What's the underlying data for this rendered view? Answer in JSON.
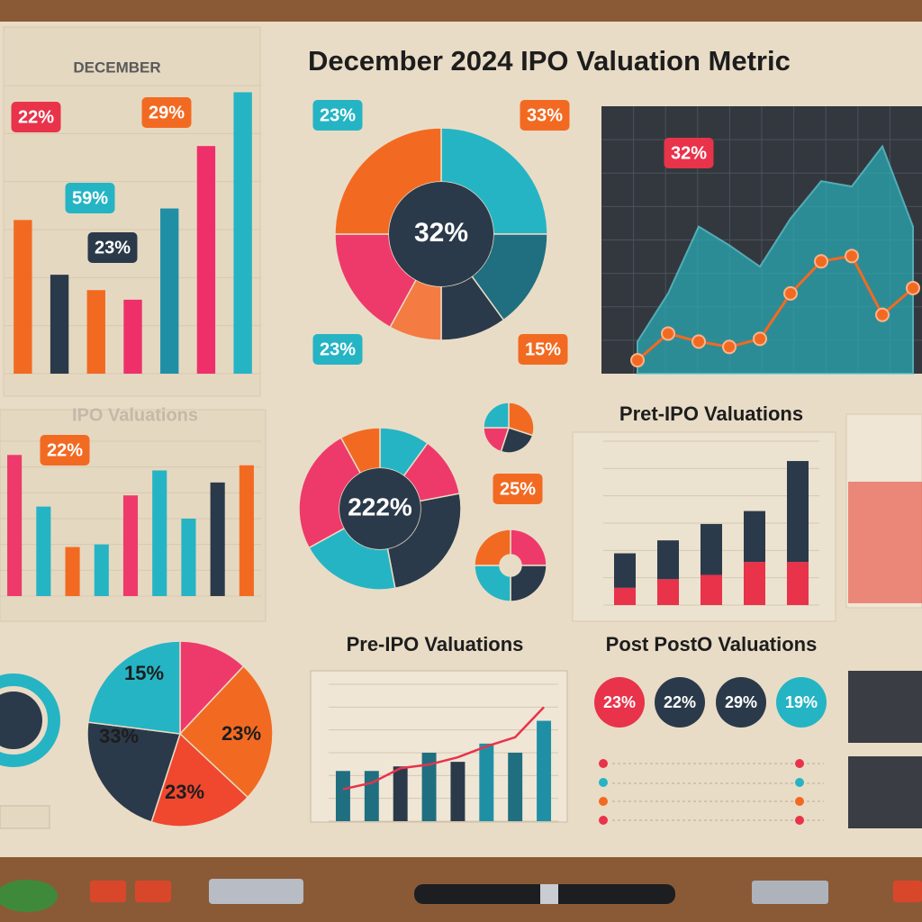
{
  "title": "December 2024 IPO Valuation Metric",
  "chart_data": [
    {
      "type": "bar",
      "title": "DECEMBER",
      "categories": [
        null,
        null,
        null,
        null,
        null,
        null,
        null
      ],
      "values": [
        160,
        103,
        87,
        77,
        172,
        237,
        293
      ],
      "colors": [
        "#f26a21",
        "#2b3a4a",
        "#f26a21",
        "#ee2f6a",
        "#1f8fa6",
        "#ee2f6a",
        "#25b4c4"
      ],
      "ylim": [
        0,
        300
      ],
      "annotations": [
        "22%",
        "29%",
        "59%",
        "23%"
      ]
    },
    {
      "type": "donut",
      "values": [
        25,
        15,
        10,
        8,
        17,
        25
      ],
      "colors": [
        "#25b4c4",
        "#1f6f80",
        "#2b3a4a",
        "#f47b42",
        "#ee3a6a",
        "#f26a21"
      ],
      "center": "32%",
      "annotations": [
        "23%",
        "33%",
        "23%",
        "15%"
      ]
    },
    {
      "type": "area-line",
      "categories": [
        null,
        null,
        null,
        null,
        null,
        null,
        null,
        null,
        null,
        null
      ],
      "series": [
        {
          "kind": "area",
          "color": "#2aa9b3",
          "values": [
            12,
            30,
            55,
            48,
            40,
            58,
            72,
            70,
            85,
            55
          ]
        },
        {
          "kind": "line",
          "color": "#f26a21",
          "values": [
            5,
            15,
            12,
            10,
            13,
            30,
            42,
            44,
            22,
            32
          ]
        }
      ],
      "ylim": [
        0,
        100
      ],
      "annotations": [
        "32%"
      ]
    },
    {
      "type": "bar",
      "title": "IPO Valuations",
      "categories": [
        null,
        null,
        null,
        null,
        null,
        null,
        null,
        null,
        null
      ],
      "values": [
        164,
        104,
        57,
        60,
        117,
        146,
        90,
        132,
        152
      ],
      "colors": [
        "#ee3a6a",
        "#25b4c4",
        "#f26a21",
        "#25b4c4",
        "#ee3a6a",
        "#25b4c4",
        "#25b4c4",
        "#2b3a4a",
        "#f26a21"
      ],
      "ylim": [
        0,
        180
      ],
      "annotations": [
        "22%"
      ]
    },
    {
      "type": "donut",
      "values": [
        10,
        12,
        25,
        20,
        25,
        8
      ],
      "colors": [
        "#25b4c4",
        "#ee3a6a",
        "#2b3a4a",
        "#25b4c4",
        "#ee3a6a",
        "#f26a21"
      ],
      "center": "222%",
      "annotations": [
        "25%"
      ]
    },
    {
      "type": "pie",
      "values": [
        30,
        25,
        20,
        25
      ],
      "colors": [
        "#f26a21",
        "#2b3a4a",
        "#ee3a6a",
        "#25b4c4"
      ]
    },
    {
      "type": "donut",
      "values": [
        25,
        25,
        25,
        25
      ],
      "colors": [
        "#ee3a6a",
        "#2b3a4a",
        "#25b4c4",
        "#f26a21"
      ]
    },
    {
      "type": "bar",
      "title": "Pret-IPO Valuations",
      "categories": [
        null,
        null,
        null,
        null,
        null
      ],
      "series": [
        {
          "color": "#e8334a",
          "values": [
            20,
            30,
            35,
            50,
            50
          ]
        },
        {
          "color": "#2b3a4a",
          "values": [
            40,
            45,
            59,
            59,
            117
          ]
        }
      ],
      "ylim": [
        0,
        190
      ]
    },
    {
      "type": "pie",
      "values": [
        12,
        25,
        18,
        22,
        23
      ],
      "colors": [
        "#ee3a6a",
        "#f26a21",
        "#f0472f",
        "#2b3a4a",
        "#25b4c4"
      ],
      "annotations": [
        "15%",
        "23%",
        "33%",
        "23%"
      ]
    },
    {
      "type": "bar",
      "title": "Pre-IPO Valuations",
      "categories": [
        null,
        null,
        null,
        null,
        null,
        null,
        null,
        null
      ],
      "values": [
        55,
        55,
        60,
        75,
        65,
        85,
        75,
        110
      ],
      "colors": [
        "#1f6f80",
        "#1f6f80",
        "#2b3a4a",
        "#1f6f80",
        "#2b3a4a",
        "#1f8fa6",
        "#1f6f80",
        "#1f8fa6"
      ],
      "line_values": [
        35,
        42,
        58,
        62,
        70,
        82,
        92,
        125
      ],
      "line_color": "#e8334a",
      "ylim": [
        0,
        150
      ]
    },
    {
      "type": "badges",
      "title": "Post PostO Valuations",
      "values": [
        23,
        22,
        29,
        19
      ],
      "value_labels": [
        "23%",
        "22%",
        "29%",
        "19%"
      ],
      "colors": [
        "#e8334a",
        "#2b3a4a",
        "#2b3a4a",
        "#25b4c4"
      ]
    }
  ]
}
